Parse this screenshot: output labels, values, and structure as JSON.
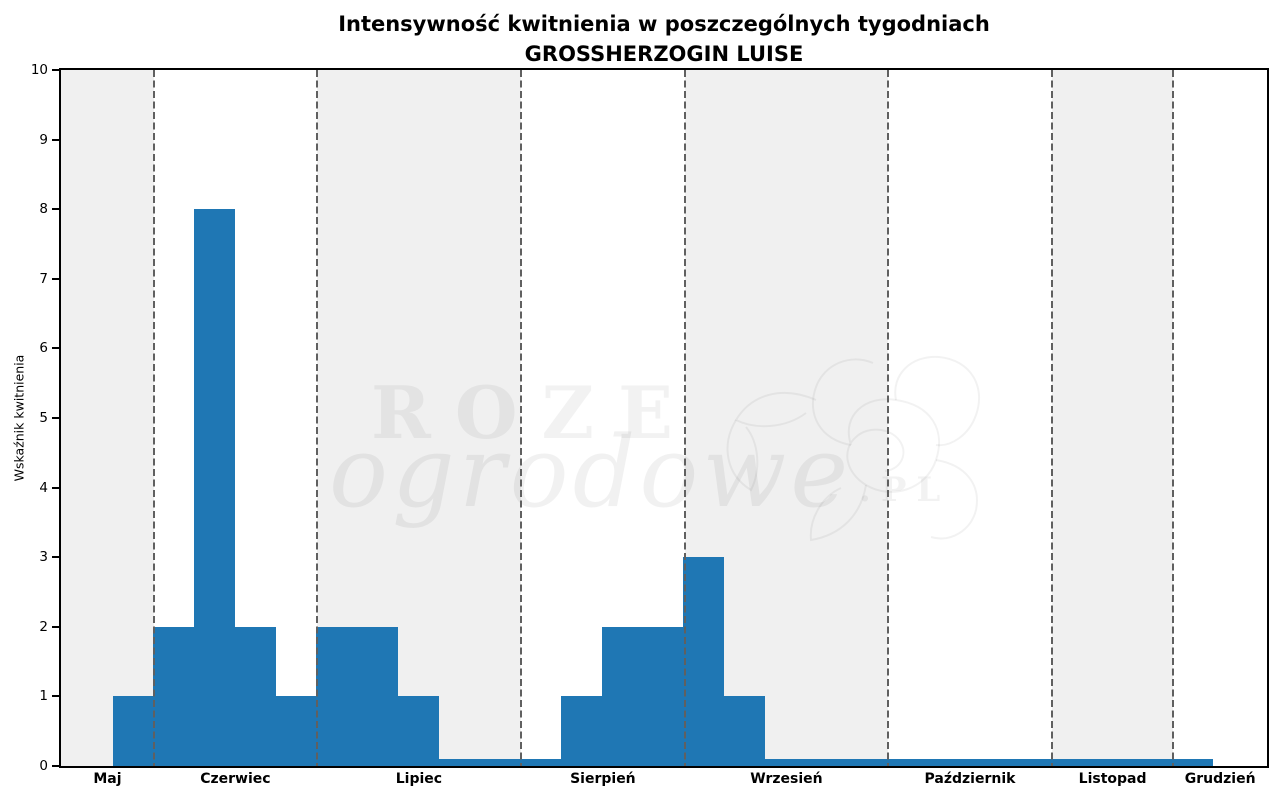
{
  "title": {
    "line1": "Intensywność kwitnienia w poszczególnych tygodniach",
    "line2": "GROSSHERZOGIN LUISE"
  },
  "watermark": {
    "word1": "ROZE",
    "word2": "ogrodowe",
    "suffix": ".PL"
  },
  "chart_data": {
    "type": "bar",
    "title": "Intensywność kwitnienia w poszczególnych tygodniach GROSSHERZOGIN LUISE",
    "xlabel": "",
    "ylabel": "Wskaźnik kwitnienia",
    "ylim": [
      0,
      10
    ],
    "yticks": [
      0,
      1,
      2,
      3,
      4,
      5,
      6,
      7,
      8,
      9,
      10
    ],
    "grid": false,
    "legend": null,
    "x_axis_unit": "week",
    "x_range_weeks": [
      0,
      29.6
    ],
    "bar_color": "#1f77b4",
    "band_color": "#f0f0f0",
    "divider_color": "#606060",
    "bars": {
      "first_bar_start_week": 1.27,
      "bar_width_weeks": 1,
      "values": [
        1,
        2,
        8,
        2,
        1,
        2,
        2,
        1,
        0.1,
        0.1,
        0.1,
        1,
        2,
        2,
        3,
        1,
        0.1,
        0.1,
        0.1,
        0.1,
        0.1,
        0.1,
        0.1,
        0.1,
        0.1,
        0.1,
        0.1
      ]
    },
    "months": [
      {
        "label": "Maj",
        "start_week": 0,
        "end_week": 2.28,
        "shaded": true
      },
      {
        "label": "Czerwiec",
        "start_week": 2.28,
        "end_week": 6.28,
        "shaded": false
      },
      {
        "label": "Lipiec",
        "start_week": 6.28,
        "end_week": 11.29,
        "shaded": true
      },
      {
        "label": "Sierpień",
        "start_week": 11.29,
        "end_week": 15.31,
        "shaded": false
      },
      {
        "label": "Wrzesień",
        "start_week": 15.31,
        "end_week": 20.3,
        "shaded": true
      },
      {
        "label": "Październik",
        "start_week": 20.3,
        "end_week": 24.32,
        "shaded": false
      },
      {
        "label": "Listopad",
        "start_week": 24.32,
        "end_week": 27.3,
        "shaded": true
      },
      {
        "label": "Grudzień",
        "start_week": 27.3,
        "end_week": 29.6,
        "shaded": false
      }
    ]
  }
}
